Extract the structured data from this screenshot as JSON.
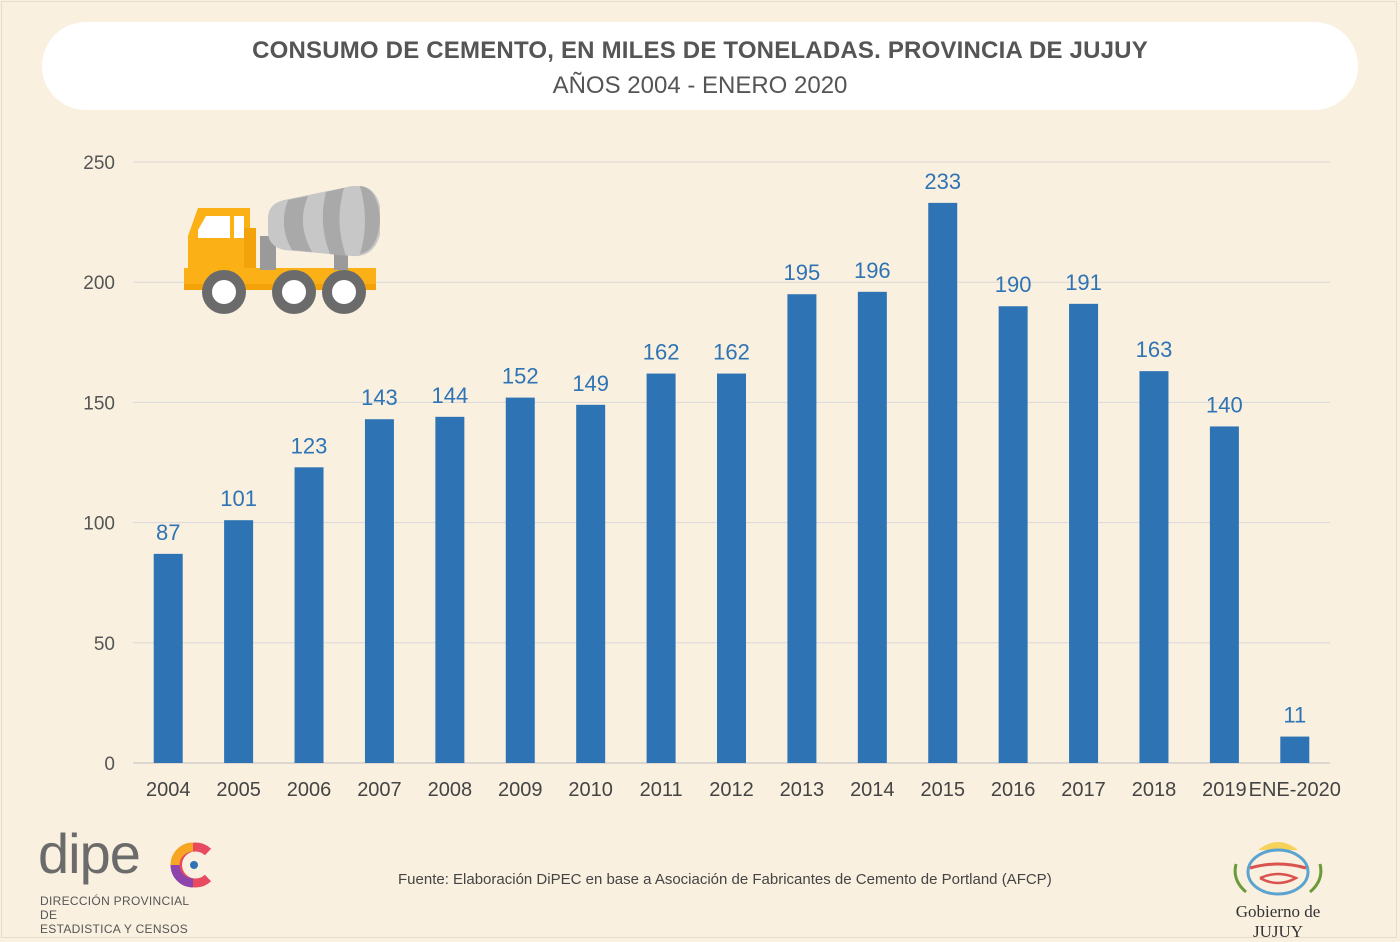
{
  "header": {
    "title": "CONSUMO DE CEMENTO, EN MILES DE TONELADAS. PROVINCIA DE JUJUY",
    "subtitle": "AÑOS 2004 - ENERO 2020"
  },
  "chart_data": {
    "type": "bar",
    "title": "CONSUMO DE CEMENTO, EN MILES DE TONELADAS. PROVINCIA DE JUJUY",
    "subtitle": "AÑOS 2004 - ENERO 2020",
    "xlabel": "",
    "ylabel": "",
    "categories": [
      "2004",
      "2005",
      "2006",
      "2007",
      "2008",
      "2009",
      "2010",
      "2011",
      "2012",
      "2013",
      "2014",
      "2015",
      "2016",
      "2017",
      "2018",
      "2019",
      "ENE-2020"
    ],
    "values": [
      87,
      101,
      123,
      143,
      144,
      152,
      149,
      162,
      162,
      195,
      196,
      233,
      190,
      191,
      163,
      140,
      11
    ],
    "ylim": [
      0,
      250
    ],
    "yticks": [
      0,
      50,
      100,
      150,
      200,
      250
    ],
    "grid": true,
    "bar_color": "#2e74b5"
  },
  "footer": {
    "source": "Fuente: Elaboración DiPEC en base a Asociación de Fabricantes de Cemento de Portland (AFCP)",
    "dipec_word": "dipe",
    "dipec_tagline_1": "DIRECCIÓN PROVINCIAL DE",
    "dipec_tagline_2": "ESTADISTICA Y CENSOS",
    "gov_label": "Gobierno de JUJUY"
  },
  "icons": {
    "truck": "cement-mixer-truck-icon",
    "dipec_c": "dipec-c-logo-icon",
    "jujuy": "jujuy-emblem-icon"
  }
}
